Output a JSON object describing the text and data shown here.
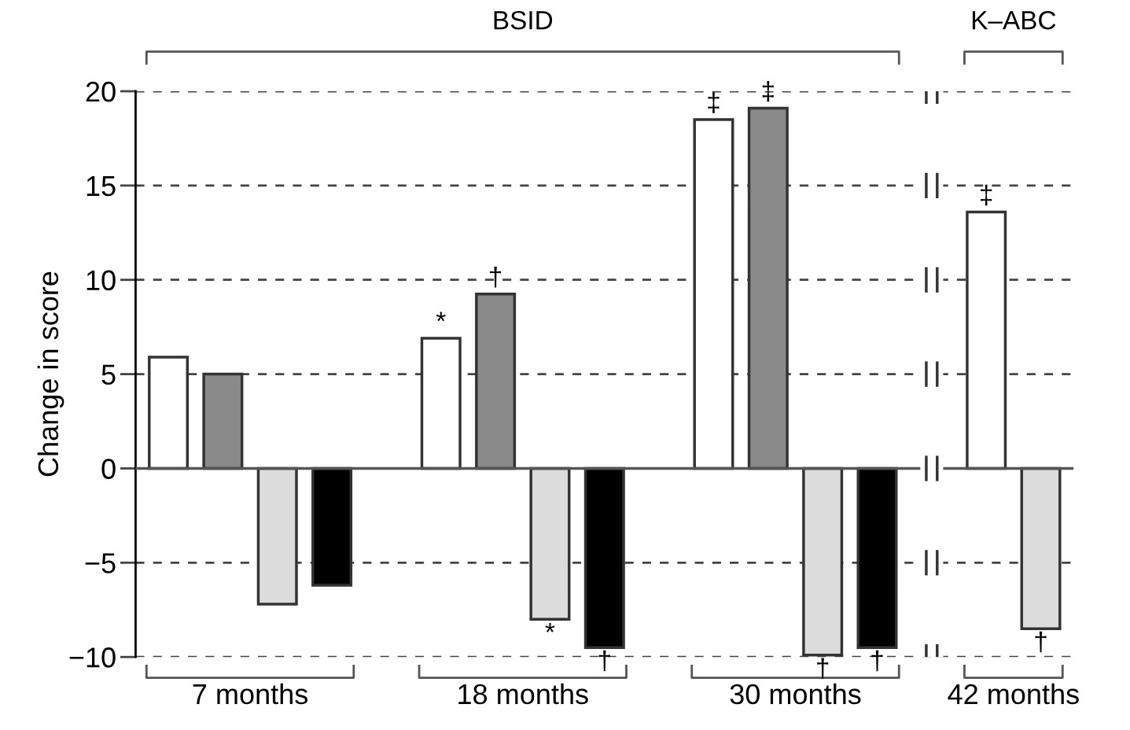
{
  "chart_data": {
    "type": "bar",
    "ylabel": "Change in score",
    "categories": [
      "7 months",
      "18 months",
      "30 months",
      "42 months"
    ],
    "series": [
      {
        "color": "#ffffff",
        "values": [
          5.9,
          6.9,
          18.5,
          13.6
        ],
        "value_labels": [
          null,
          "*",
          "‡",
          "‡"
        ]
      },
      {
        "color": "#8a8a8a",
        "values": [
          5.0,
          9.25,
          19.1,
          null
        ],
        "value_labels": [
          null,
          "†",
          "‡",
          null
        ]
      },
      {
        "color": "#dcdcdc",
        "values": [
          -7.2,
          -8.0,
          -9.9,
          -8.5
        ],
        "value_labels": [
          null,
          "*",
          "†",
          "†"
        ]
      },
      {
        "color": "#000000",
        "values": [
          -6.2,
          -9.5,
          -9.5,
          null
        ],
        "value_labels": [
          null,
          "†",
          "†",
          null
        ]
      }
    ],
    "ylim": [
      -10,
      20
    ],
    "yticks": [
      {
        "value": -10,
        "label": "−10"
      },
      {
        "value": -5,
        "label": "−5"
      },
      0,
      5,
      10,
      15,
      20
    ],
    "grid": "y",
    "annotations": [
      "BSID",
      "K–ABC"
    ]
  }
}
